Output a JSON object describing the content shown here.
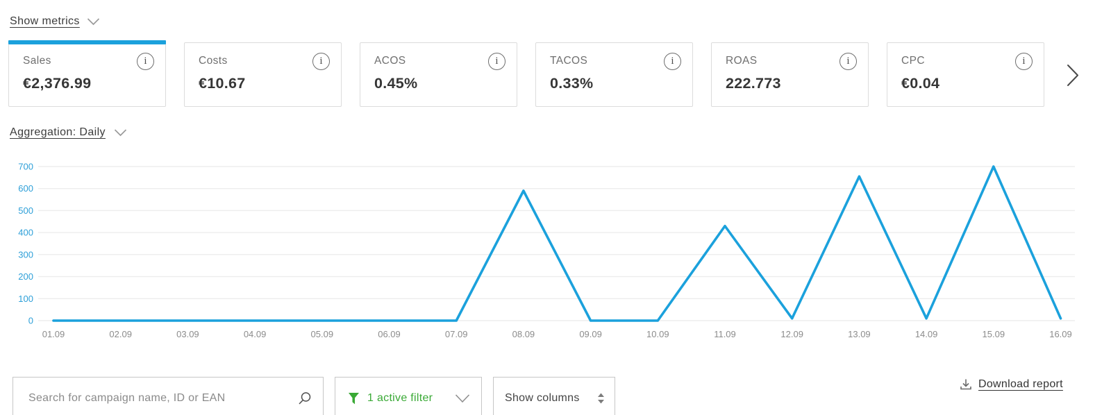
{
  "colors": {
    "accent_blue": "#1ba1dc",
    "green": "#39a935",
    "grid": "#ededed",
    "date_gray": "#8c8c8c",
    "ytick_blue": "#2d9fd8"
  },
  "header": {
    "show_metrics_label": "Show metrics"
  },
  "metrics": {
    "cards": [
      {
        "label": "Sales",
        "value": "€2,376.99",
        "selected": true
      },
      {
        "label": "Costs",
        "value": "€10.67",
        "selected": false
      },
      {
        "label": "ACOS",
        "value": "0.45%",
        "selected": false
      },
      {
        "label": "TACOS",
        "value": "0.33%",
        "selected": false
      },
      {
        "label": "ROAS",
        "value": "222.773",
        "selected": false
      },
      {
        "label": "CPC",
        "value": "€0.04",
        "selected": false
      }
    ],
    "info_glyph": "i"
  },
  "aggregation": {
    "label": "Aggregation: Daily"
  },
  "chart_data": {
    "type": "line",
    "title": "",
    "x": [
      "01.09",
      "02.09",
      "03.09",
      "04.09",
      "05.09",
      "06.09",
      "07.09",
      "08.09",
      "09.09",
      "10.09",
      "11.09",
      "12.09",
      "13.09",
      "14.09",
      "15.09",
      "16.09"
    ],
    "series": [
      {
        "name": "Sales",
        "values": [
          0,
          0,
          0,
          0,
          0,
          0,
          0,
          590,
          0,
          0,
          430,
          10,
          655,
          10,
          700,
          10
        ]
      }
    ],
    "ylim": [
      0,
      700
    ],
    "yticks": [
      0,
      100,
      200,
      300,
      400,
      500,
      600,
      700
    ],
    "grid": true,
    "legend": "none",
    "line_color": "#1ba1dc"
  },
  "toolbar": {
    "search_placeholder": "Search for campaign name, ID or EAN",
    "filter_label": "1 active filter",
    "columns_label": "Show columns",
    "download_label": "Download report"
  }
}
